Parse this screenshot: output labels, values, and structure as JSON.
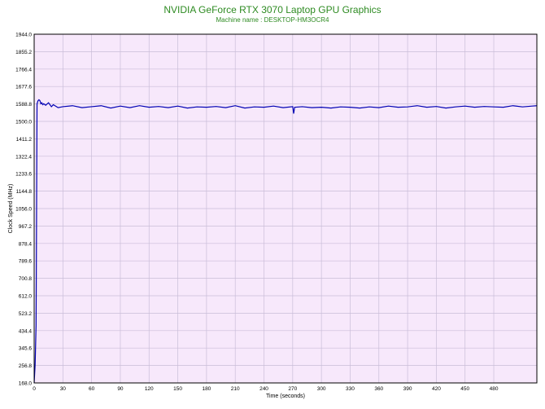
{
  "title": "NVIDIA GeForce RTX 3070 Laptop GPU Graphics",
  "subtitle": "Machine name : DESKTOP-HM3OCR4",
  "colors": {
    "plot_bg": "#f7e8fb",
    "grid": "#c9bdd8",
    "line": "#0000b4",
    "title": "#2e8b22"
  },
  "chart_data": {
    "type": "line",
    "xlabel": "Time (seconds)",
    "ylabel": "Clock Speed (MHz)",
    "xlim": [
      0,
      525
    ],
    "ylim": [
      168.0,
      1944.0
    ],
    "x_ticks": [
      0,
      30,
      60,
      90,
      120,
      150,
      180,
      210,
      240,
      270,
      300,
      330,
      360,
      390,
      420,
      450,
      480
    ],
    "y_ticks": [
      "168.0",
      "256.8",
      "345.6",
      "434.4",
      "523.2",
      "612.0",
      "700.8",
      "789.6",
      "878.4",
      "967.2",
      "1056.0",
      "1144.8",
      "1233.6",
      "1322.4",
      "1411.2",
      "1500.0",
      "1588.8",
      "1677.6",
      "1766.4",
      "1855.2",
      "1944.0"
    ],
    "grid": true,
    "series": [
      {
        "x": [
          0,
          1,
          2,
          3,
          4,
          5,
          6,
          7,
          8,
          9,
          10,
          12,
          15,
          18,
          20,
          25,
          30,
          40,
          50,
          60,
          70,
          80,
          90,
          100,
          110,
          120,
          130,
          140,
          150,
          160,
          170,
          180,
          190,
          200,
          210,
          220,
          230,
          240,
          250,
          260,
          270,
          271,
          272,
          280,
          290,
          300,
          310,
          320,
          330,
          340,
          350,
          360,
          370,
          380,
          390,
          400,
          410,
          420,
          430,
          440,
          450,
          460,
          470,
          480,
          490,
          500,
          510,
          520,
          525
        ],
        "y": [
          168,
          260,
          460,
          1590,
          1605,
          1610,
          1606,
          1590,
          1595,
          1585,
          1590,
          1582,
          1595,
          1575,
          1585,
          1570,
          1575,
          1580,
          1570,
          1575,
          1580,
          1568,
          1578,
          1570,
          1580,
          1572,
          1576,
          1570,
          1578,
          1568,
          1574,
          1572,
          1576,
          1570,
          1580,
          1568,
          1574,
          1572,
          1578,
          1570,
          1575,
          1540,
          1572,
          1575,
          1570,
          1572,
          1568,
          1574,
          1572,
          1568,
          1574,
          1570,
          1578,
          1572,
          1574,
          1580,
          1572,
          1576,
          1568,
          1574,
          1578,
          1572,
          1576,
          1574,
          1572,
          1580,
          1574,
          1578,
          1580
        ]
      }
    ]
  }
}
